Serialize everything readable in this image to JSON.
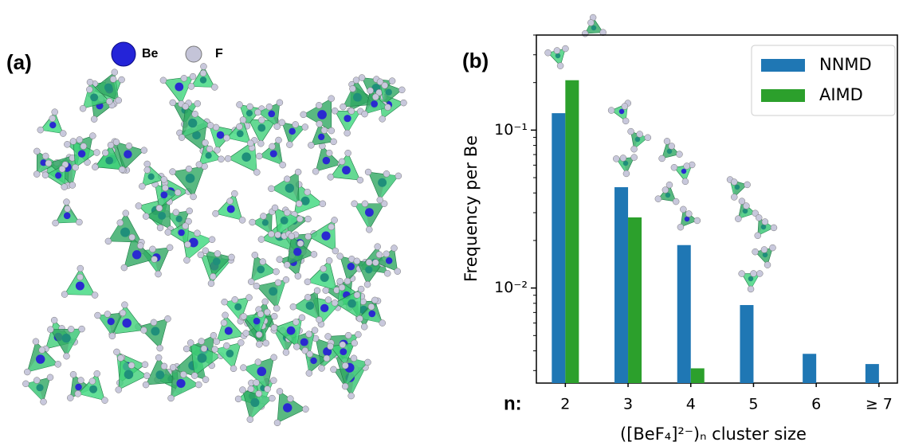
{
  "panel_a": {
    "label": "(a)",
    "legend": [
      "Be",
      "F"
    ]
  },
  "chart_data": {
    "type": "bar",
    "panel_label": "(b)",
    "x_prefix": "n:",
    "xlabel": "([BeF₄]²⁻)ₙ cluster size",
    "ylabel": "Frequency per Be",
    "categories": [
      "2",
      "3",
      "4",
      "5",
      "6",
      "≥ 7"
    ],
    "series": [
      {
        "name": "NNMD",
        "color": "#1f77b4",
        "values": [
          0.128,
          0.0435,
          0.0187,
          0.0078,
          0.00383,
          0.0033
        ]
      },
      {
        "name": "AIMD",
        "color": "#2ca02c",
        "values": [
          0.207,
          0.028,
          0.0031,
          null,
          null,
          null
        ]
      }
    ],
    "ylim": [
      0.0025,
      0.4
    ],
    "yticks": [
      {
        "value": 0.01,
        "label": "10⁻²"
      },
      {
        "value": 0.1,
        "label": "10⁻¹"
      }
    ],
    "log_y": true,
    "legend": "upper right"
  }
}
